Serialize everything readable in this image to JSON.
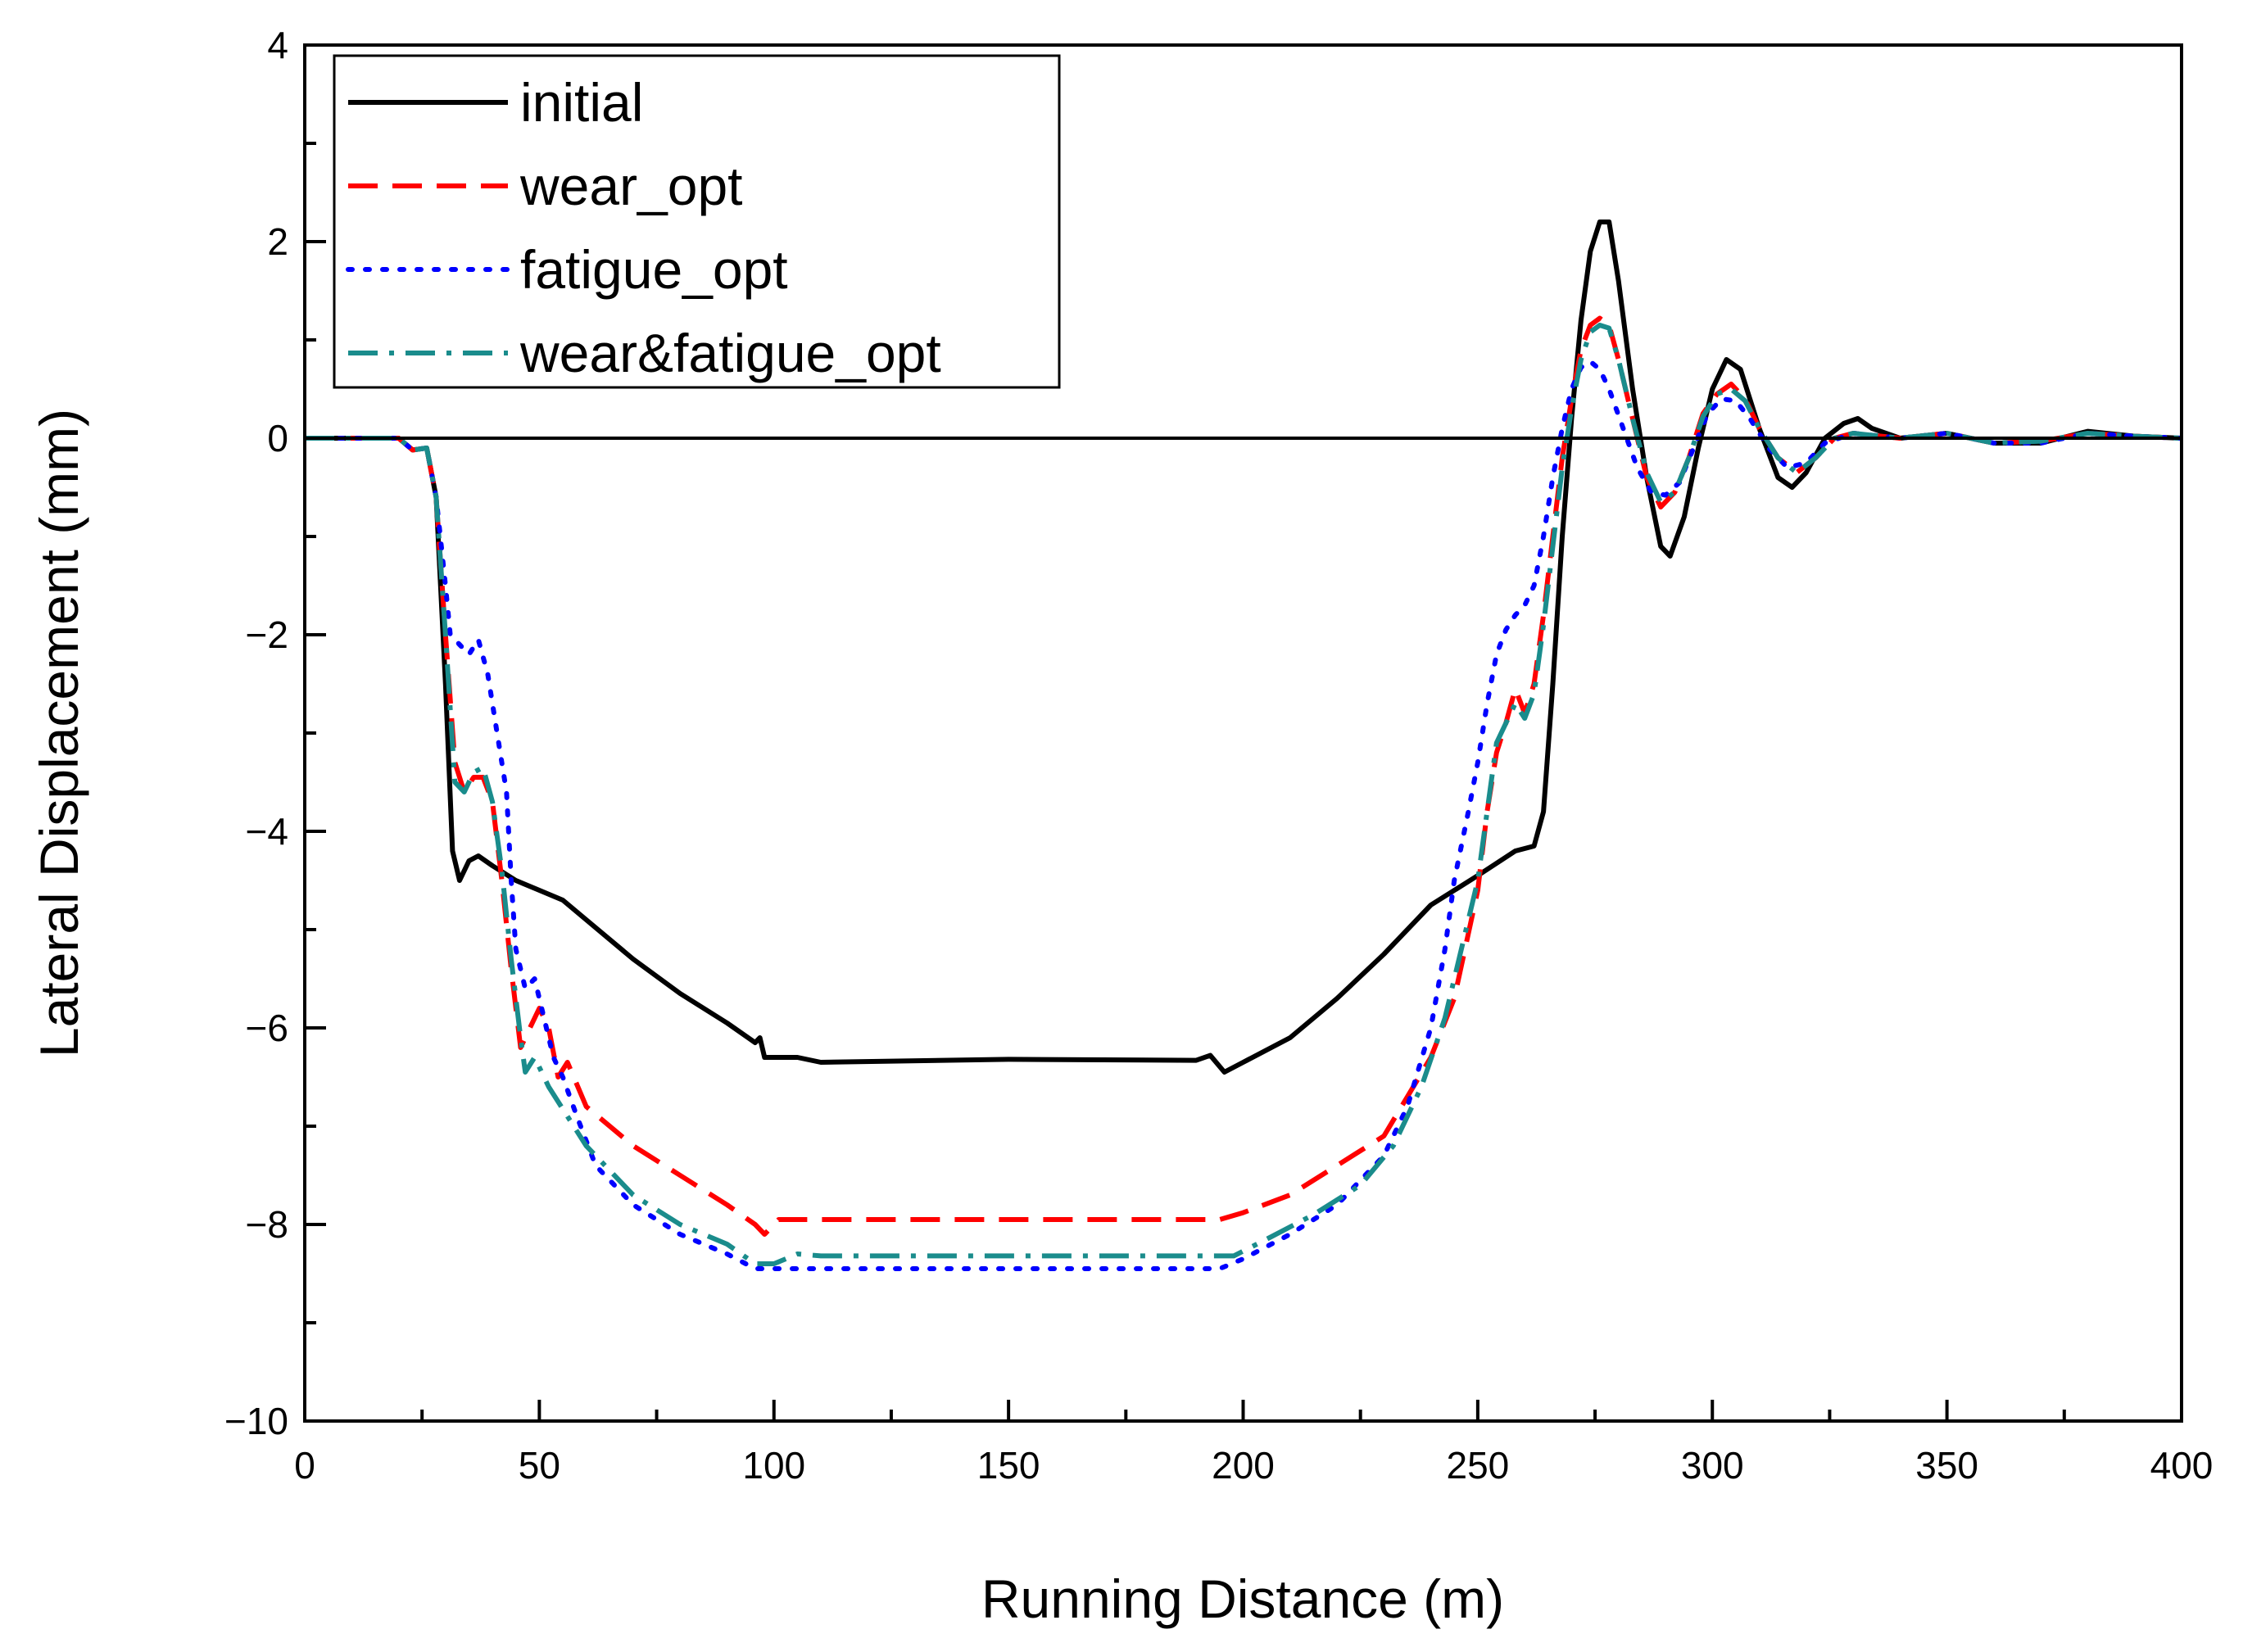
{
  "chart_data": {
    "type": "line",
    "title": "",
    "xlabel": "Running Distance (m)",
    "ylabel": "Lateral Displacement (mm)",
    "xlim": [
      0,
      400
    ],
    "ylim": [
      -10,
      4
    ],
    "xticks": [
      0,
      50,
      100,
      150,
      200,
      250,
      300,
      350,
      400
    ],
    "yticks": [
      -10,
      -8,
      -6,
      -4,
      -2,
      0,
      2,
      4
    ],
    "xtick_labels": [
      "0",
      "50",
      "100",
      "150",
      "200",
      "250",
      "300",
      "350",
      "400"
    ],
    "ytick_labels": [
      "−10",
      "−8",
      "−6",
      "−4",
      "−2",
      "0",
      "2",
      "4"
    ],
    "grid": false,
    "reference_line_y": 0,
    "legend_position": "top-left",
    "series": [
      {
        "name": "initial",
        "color": "#000000",
        "style": "solid",
        "points": [
          [
            0,
            0
          ],
          [
            20,
            0
          ],
          [
            23,
            -0.12
          ],
          [
            26,
            -0.1
          ],
          [
            28,
            -0.6
          ],
          [
            30,
            -2.5
          ],
          [
            31.5,
            -4.2
          ],
          [
            33,
            -4.5
          ],
          [
            35,
            -4.3
          ],
          [
            37,
            -4.25
          ],
          [
            40,
            -4.35
          ],
          [
            45,
            -4.5
          ],
          [
            50,
            -4.6
          ],
          [
            55,
            -4.7
          ],
          [
            60,
            -4.9
          ],
          [
            70,
            -5.3
          ],
          [
            80,
            -5.65
          ],
          [
            90,
            -5.95
          ],
          [
            96,
            -6.15
          ],
          [
            97,
            -6.1
          ],
          [
            98,
            -6.3
          ],
          [
            105,
            -6.3
          ],
          [
            110,
            -6.35
          ],
          [
            150,
            -6.32
          ],
          [
            190,
            -6.33
          ],
          [
            193,
            -6.28
          ],
          [
            196,
            -6.45
          ],
          [
            200,
            -6.35
          ],
          [
            210,
            -6.1
          ],
          [
            220,
            -5.7
          ],
          [
            230,
            -5.25
          ],
          [
            240,
            -4.75
          ],
          [
            250,
            -4.45
          ],
          [
            258,
            -4.2
          ],
          [
            262,
            -4.15
          ],
          [
            264,
            -3.8
          ],
          [
            266,
            -2.5
          ],
          [
            268,
            -1.0
          ],
          [
            270,
            0.2
          ],
          [
            272,
            1.2
          ],
          [
            274,
            1.9
          ],
          [
            276,
            2.2
          ],
          [
            278,
            2.2
          ],
          [
            280,
            1.6
          ],
          [
            283,
            0.5
          ],
          [
            286,
            -0.4
          ],
          [
            289,
            -1.1
          ],
          [
            291,
            -1.2
          ],
          [
            294,
            -0.8
          ],
          [
            297,
            -0.1
          ],
          [
            300,
            0.5
          ],
          [
            303,
            0.8
          ],
          [
            306,
            0.7
          ],
          [
            310,
            0.1
          ],
          [
            314,
            -0.4
          ],
          [
            317,
            -0.5
          ],
          [
            320,
            -0.35
          ],
          [
            324,
            0.0
          ],
          [
            328,
            0.15
          ],
          [
            331,
            0.2
          ],
          [
            334,
            0.1
          ],
          [
            340,
            0.0
          ],
          [
            350,
            0.05
          ],
          [
            360,
            -0.05
          ],
          [
            370,
            -0.05
          ],
          [
            380,
            0.07
          ],
          [
            390,
            0.02
          ],
          [
            400,
            0.0
          ]
        ]
      },
      {
        "name": "wear_opt",
        "color": "#ff0000",
        "style": "dashed",
        "points": [
          [
            0,
            0
          ],
          [
            20,
            0
          ],
          [
            23,
            -0.12
          ],
          [
            26,
            -0.1
          ],
          [
            28,
            -0.6
          ],
          [
            30,
            -2.0
          ],
          [
            32,
            -3.3
          ],
          [
            34,
            -3.6
          ],
          [
            36,
            -3.45
          ],
          [
            38,
            -3.45
          ],
          [
            40,
            -3.7
          ],
          [
            42,
            -4.5
          ],
          [
            44,
            -5.4
          ],
          [
            46,
            -6.2
          ],
          [
            48,
            -6.0
          ],
          [
            50,
            -5.8
          ],
          [
            52,
            -6.0
          ],
          [
            54,
            -6.5
          ],
          [
            56,
            -6.35
          ],
          [
            60,
            -6.8
          ],
          [
            70,
            -7.2
          ],
          [
            80,
            -7.5
          ],
          [
            90,
            -7.8
          ],
          [
            96,
            -8.0
          ],
          [
            98,
            -8.1
          ],
          [
            101,
            -7.95
          ],
          [
            110,
            -7.95
          ],
          [
            150,
            -7.95
          ],
          [
            195,
            -7.95
          ],
          [
            200,
            -7.88
          ],
          [
            210,
            -7.7
          ],
          [
            220,
            -7.4
          ],
          [
            230,
            -7.1
          ],
          [
            235,
            -6.7
          ],
          [
            240,
            -6.3
          ],
          [
            245,
            -5.7
          ],
          [
            250,
            -4.6
          ],
          [
            252,
            -3.8
          ],
          [
            254,
            -3.2
          ],
          [
            256,
            -2.9
          ],
          [
            258,
            -2.55
          ],
          [
            260,
            -2.8
          ],
          [
            262,
            -2.5
          ],
          [
            264,
            -1.8
          ],
          [
            266,
            -1.0
          ],
          [
            268,
            -0.2
          ],
          [
            270,
            0.4
          ],
          [
            272,
            0.9
          ],
          [
            274,
            1.15
          ],
          [
            276,
            1.22
          ],
          [
            278,
            1.15
          ],
          [
            280,
            0.8
          ],
          [
            283,
            0.2
          ],
          [
            286,
            -0.4
          ],
          [
            289,
            -0.7
          ],
          [
            292,
            -0.55
          ],
          [
            295,
            -0.2
          ],
          [
            298,
            0.25
          ],
          [
            301,
            0.45
          ],
          [
            304,
            0.55
          ],
          [
            307,
            0.4
          ],
          [
            310,
            0.1
          ],
          [
            314,
            -0.2
          ],
          [
            318,
            -0.35
          ],
          [
            322,
            -0.2
          ],
          [
            326,
            0.0
          ],
          [
            330,
            0.05
          ],
          [
            340,
            0.0
          ],
          [
            350,
            0.05
          ],
          [
            360,
            -0.05
          ],
          [
            370,
            -0.03
          ],
          [
            380,
            0.05
          ],
          [
            390,
            0.02
          ],
          [
            400,
            0.0
          ]
        ]
      },
      {
        "name": "fatigue_opt",
        "color": "#0000ff",
        "style": "dotted",
        "points": [
          [
            0,
            0
          ],
          [
            20,
            0
          ],
          [
            23,
            -0.12
          ],
          [
            26,
            -0.1
          ],
          [
            28,
            -0.6
          ],
          [
            30,
            -1.5
          ],
          [
            31,
            -2.0
          ],
          [
            33,
            -2.1
          ],
          [
            35,
            -2.2
          ],
          [
            37,
            -2.05
          ],
          [
            39,
            -2.4
          ],
          [
            41,
            -3.0
          ],
          [
            43,
            -3.6
          ],
          [
            44,
            -4.5
          ],
          [
            45,
            -5.2
          ],
          [
            47,
            -5.6
          ],
          [
            49,
            -5.5
          ],
          [
            51,
            -5.9
          ],
          [
            53,
            -6.3
          ],
          [
            55,
            -6.5
          ],
          [
            58,
            -6.9
          ],
          [
            62,
            -7.4
          ],
          [
            70,
            -7.8
          ],
          [
            80,
            -8.1
          ],
          [
            90,
            -8.3
          ],
          [
            96,
            -8.45
          ],
          [
            100,
            -8.45
          ],
          [
            110,
            -8.45
          ],
          [
            120,
            -8.45
          ],
          [
            150,
            -8.45
          ],
          [
            180,
            -8.45
          ],
          [
            195,
            -8.45
          ],
          [
            200,
            -8.35
          ],
          [
            210,
            -8.1
          ],
          [
            220,
            -7.8
          ],
          [
            230,
            -7.3
          ],
          [
            235,
            -6.8
          ],
          [
            240,
            -6.0
          ],
          [
            243,
            -5.2
          ],
          [
            245,
            -4.5
          ],
          [
            248,
            -3.8
          ],
          [
            250,
            -3.3
          ],
          [
            252,
            -2.7
          ],
          [
            254,
            -2.2
          ],
          [
            256,
            -1.95
          ],
          [
            258,
            -1.8
          ],
          [
            260,
            -1.7
          ],
          [
            262,
            -1.5
          ],
          [
            264,
            -1.0
          ],
          [
            266,
            -0.4
          ],
          [
            268,
            0.1
          ],
          [
            270,
            0.5
          ],
          [
            272,
            0.72
          ],
          [
            274,
            0.78
          ],
          [
            276,
            0.7
          ],
          [
            278,
            0.5
          ],
          [
            281,
            0.1
          ],
          [
            284,
            -0.3
          ],
          [
            287,
            -0.55
          ],
          [
            290,
            -0.58
          ],
          [
            293,
            -0.45
          ],
          [
            296,
            -0.1
          ],
          [
            299,
            0.25
          ],
          [
            302,
            0.4
          ],
          [
            305,
            0.38
          ],
          [
            308,
            0.2
          ],
          [
            312,
            -0.1
          ],
          [
            316,
            -0.3
          ],
          [
            320,
            -0.25
          ],
          [
            324,
            -0.05
          ],
          [
            330,
            0.05
          ],
          [
            340,
            0.0
          ],
          [
            350,
            0.05
          ],
          [
            360,
            -0.05
          ],
          [
            370,
            -0.05
          ],
          [
            380,
            0.05
          ],
          [
            390,
            0.02
          ],
          [
            400,
            0.0
          ]
        ]
      },
      {
        "name": "wear&fatigue_opt",
        "color": "#1a8c8c",
        "style": "dashdot",
        "points": [
          [
            0,
            0
          ],
          [
            20,
            0
          ],
          [
            23,
            -0.12
          ],
          [
            26,
            -0.1
          ],
          [
            28,
            -0.6
          ],
          [
            30,
            -2.0
          ],
          [
            32,
            -3.5
          ],
          [
            34,
            -3.6
          ],
          [
            36,
            -3.4
          ],
          [
            38,
            -3.35
          ],
          [
            40,
            -3.7
          ],
          [
            42,
            -4.4
          ],
          [
            44,
            -5.3
          ],
          [
            46,
            -6.1
          ],
          [
            47,
            -6.45
          ],
          [
            49,
            -6.3
          ],
          [
            52,
            -6.6
          ],
          [
            56,
            -6.9
          ],
          [
            60,
            -7.2
          ],
          [
            70,
            -7.7
          ],
          [
            80,
            -8.0
          ],
          [
            90,
            -8.2
          ],
          [
            96,
            -8.4
          ],
          [
            100,
            -8.4
          ],
          [
            105,
            -8.3
          ],
          [
            110,
            -8.32
          ],
          [
            150,
            -8.32
          ],
          [
            180,
            -8.32
          ],
          [
            198,
            -8.32
          ],
          [
            205,
            -8.15
          ],
          [
            215,
            -7.9
          ],
          [
            225,
            -7.6
          ],
          [
            232,
            -7.2
          ],
          [
            238,
            -6.6
          ],
          [
            243,
            -5.9
          ],
          [
            247,
            -5.1
          ],
          [
            250,
            -4.5
          ],
          [
            252,
            -3.8
          ],
          [
            254,
            -3.1
          ],
          [
            256,
            -2.9
          ],
          [
            258,
            -2.7
          ],
          [
            260,
            -2.85
          ],
          [
            262,
            -2.6
          ],
          [
            264,
            -1.9
          ],
          [
            266,
            -1.1
          ],
          [
            268,
            -0.3
          ],
          [
            270,
            0.3
          ],
          [
            272,
            0.8
          ],
          [
            274,
            1.08
          ],
          [
            276,
            1.15
          ],
          [
            278,
            1.12
          ],
          [
            280,
            0.8
          ],
          [
            283,
            0.2
          ],
          [
            286,
            -0.35
          ],
          [
            289,
            -0.65
          ],
          [
            292,
            -0.55
          ],
          [
            295,
            -0.2
          ],
          [
            298,
            0.22
          ],
          [
            301,
            0.45
          ],
          [
            304,
            0.5
          ],
          [
            307,
            0.38
          ],
          [
            310,
            0.1
          ],
          [
            314,
            -0.2
          ],
          [
            318,
            -0.35
          ],
          [
            322,
            -0.2
          ],
          [
            326,
            0.0
          ],
          [
            330,
            0.05
          ],
          [
            340,
            0.0
          ],
          [
            350,
            0.05
          ],
          [
            360,
            -0.05
          ],
          [
            370,
            -0.03
          ],
          [
            380,
            0.05
          ],
          [
            390,
            0.02
          ],
          [
            400,
            0.0
          ]
        ]
      }
    ]
  }
}
